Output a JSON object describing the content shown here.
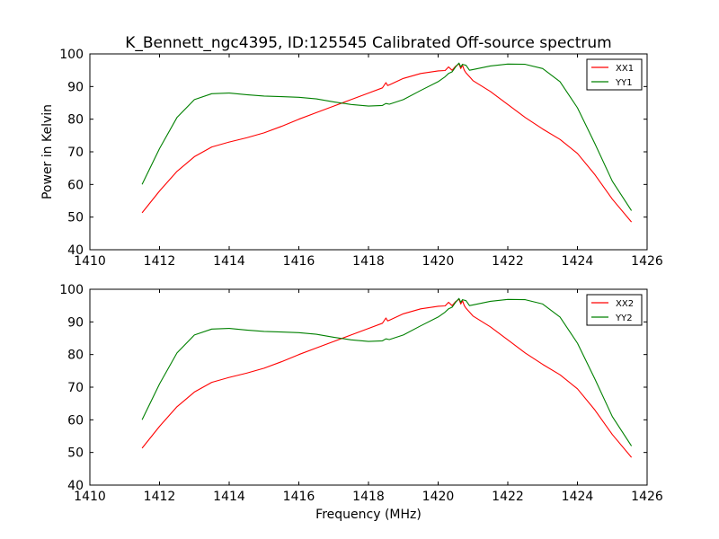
{
  "title": "K_Bennett_ngc4395, ID:125545 Calibrated Off-source spectrum",
  "colors": {
    "xx": "#ff0000",
    "yy": "#008000",
    "axes": "#000000",
    "background": "#ffffff"
  },
  "chart_data": [
    {
      "type": "line",
      "title": "K_Bennett_ngc4395, ID:125545 Calibrated Off-source spectrum",
      "xlabel": "",
      "ylabel": "Power in Kelvin",
      "xlim": [
        1410,
        1426
      ],
      "ylim": [
        40,
        100
      ],
      "x_ticks": [
        "1410",
        "1412",
        "1414",
        "1416",
        "1418",
        "1420",
        "1422",
        "1424",
        "1426"
      ],
      "y_ticks": [
        "40",
        "50",
        "60",
        "70",
        "80",
        "90",
        "100"
      ],
      "grid": false,
      "legend": "top-right",
      "series": [
        {
          "name": "XX1",
          "color": "#ff0000",
          "x": [
            1411.5,
            1412.0,
            1412.5,
            1413.0,
            1413.5,
            1414.0,
            1414.5,
            1415.0,
            1415.5,
            1416.0,
            1416.5,
            1417.0,
            1417.5,
            1418.0,
            1418.4,
            1418.5,
            1418.55,
            1418.6,
            1419.0,
            1419.5,
            1420.0,
            1420.2,
            1420.3,
            1420.4,
            1420.5,
            1420.6,
            1420.65,
            1420.7,
            1420.75,
            1420.8,
            1420.9,
            1421.0,
            1421.5,
            1422.0,
            1422.5,
            1423.0,
            1423.5,
            1424.0,
            1424.5,
            1425.0,
            1425.55
          ],
          "y": [
            51.3,
            58.0,
            64.0,
            68.5,
            71.5,
            73.0,
            74.3,
            75.8,
            77.8,
            80.0,
            82.0,
            84.0,
            86.0,
            88.0,
            89.6,
            91.2,
            90.3,
            90.5,
            92.5,
            94.0,
            94.8,
            94.9,
            96.0,
            95.0,
            96.2,
            97.0,
            95.5,
            96.5,
            95.0,
            94.2,
            93.0,
            91.8,
            88.5,
            84.5,
            80.5,
            77.0,
            73.8,
            69.5,
            63.0,
            55.5,
            48.5
          ]
        },
        {
          "name": "YY1",
          "color": "#008000",
          "x": [
            1411.5,
            1412.0,
            1412.5,
            1413.0,
            1413.5,
            1414.0,
            1414.5,
            1415.0,
            1415.5,
            1416.0,
            1416.5,
            1417.0,
            1417.5,
            1418.0,
            1418.4,
            1418.5,
            1418.6,
            1419.0,
            1419.5,
            1420.0,
            1420.2,
            1420.3,
            1420.4,
            1420.5,
            1420.6,
            1420.65,
            1420.7,
            1420.8,
            1420.9,
            1421.0,
            1421.5,
            1422.0,
            1422.5,
            1423.0,
            1423.5,
            1424.0,
            1424.5,
            1425.0,
            1425.55
          ],
          "y": [
            60.0,
            71.0,
            80.5,
            86.0,
            87.8,
            88.0,
            87.5,
            87.1,
            86.9,
            86.7,
            86.2,
            85.3,
            84.5,
            84.0,
            84.2,
            84.8,
            84.6,
            86.0,
            88.8,
            91.5,
            93.0,
            94.0,
            94.5,
            96.0,
            97.2,
            96.0,
            96.8,
            96.5,
            95.0,
            95.2,
            96.3,
            96.9,
            96.8,
            95.5,
            91.5,
            83.5,
            72.5,
            61.0,
            52.0
          ]
        }
      ]
    },
    {
      "type": "line",
      "title": "",
      "xlabel": "Frequency (MHz)",
      "ylabel": "",
      "xlim": [
        1410,
        1426
      ],
      "ylim": [
        40,
        100
      ],
      "x_ticks": [
        "1410",
        "1412",
        "1414",
        "1416",
        "1418",
        "1420",
        "1422",
        "1424",
        "1426"
      ],
      "y_ticks": [
        "40",
        "50",
        "60",
        "70",
        "80",
        "90",
        "100"
      ],
      "grid": false,
      "legend": "top-right",
      "series": [
        {
          "name": "XX2",
          "color": "#ff0000",
          "x": [
            1411.5,
            1412.0,
            1412.5,
            1413.0,
            1413.5,
            1414.0,
            1414.5,
            1415.0,
            1415.5,
            1416.0,
            1416.5,
            1417.0,
            1417.5,
            1418.0,
            1418.4,
            1418.5,
            1418.55,
            1418.6,
            1419.0,
            1419.5,
            1420.0,
            1420.2,
            1420.3,
            1420.4,
            1420.5,
            1420.6,
            1420.65,
            1420.7,
            1420.75,
            1420.8,
            1420.9,
            1421.0,
            1421.5,
            1422.0,
            1422.5,
            1423.0,
            1423.5,
            1424.0,
            1424.5,
            1425.0,
            1425.55
          ],
          "y": [
            51.3,
            58.0,
            64.0,
            68.5,
            71.5,
            73.0,
            74.3,
            75.8,
            77.8,
            80.0,
            82.0,
            84.0,
            86.0,
            88.0,
            89.6,
            91.2,
            90.3,
            90.5,
            92.5,
            94.0,
            94.8,
            94.9,
            96.0,
            95.0,
            96.2,
            97.0,
            95.5,
            96.5,
            95.0,
            94.2,
            93.0,
            91.8,
            88.5,
            84.5,
            80.5,
            77.0,
            73.8,
            69.5,
            63.0,
            55.5,
            48.5
          ]
        },
        {
          "name": "YY2",
          "color": "#008000",
          "x": [
            1411.5,
            1412.0,
            1412.5,
            1413.0,
            1413.5,
            1414.0,
            1414.5,
            1415.0,
            1415.5,
            1416.0,
            1416.5,
            1417.0,
            1417.5,
            1418.0,
            1418.4,
            1418.5,
            1418.6,
            1419.0,
            1419.5,
            1420.0,
            1420.2,
            1420.3,
            1420.4,
            1420.5,
            1420.6,
            1420.65,
            1420.7,
            1420.8,
            1420.9,
            1421.0,
            1421.5,
            1422.0,
            1422.5,
            1423.0,
            1423.5,
            1424.0,
            1424.5,
            1425.0,
            1425.55
          ],
          "y": [
            60.0,
            71.0,
            80.5,
            86.0,
            87.8,
            88.0,
            87.5,
            87.1,
            86.9,
            86.7,
            86.2,
            85.3,
            84.5,
            84.0,
            84.2,
            84.8,
            84.6,
            86.0,
            88.8,
            91.5,
            93.0,
            94.0,
            94.5,
            96.0,
            97.2,
            96.0,
            96.8,
            96.5,
            95.0,
            95.2,
            96.3,
            96.9,
            96.8,
            95.5,
            91.5,
            83.5,
            72.5,
            61.0,
            52.0
          ]
        }
      ]
    }
  ]
}
